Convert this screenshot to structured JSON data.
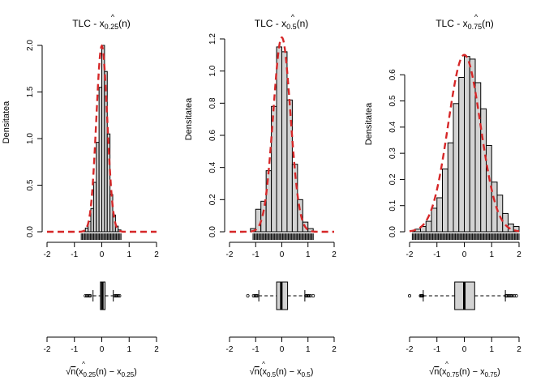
{
  "figure": {
    "panels": [
      {
        "title_main": "TLC - ",
        "title_sym": "x",
        "title_hat": "^",
        "title_sub": "0.25",
        "title_arg": "(n)",
        "ylabel": "Densitatea",
        "xlabel_sqrt": "√",
        "xlabel_n": "n",
        "xlabel_open": "(",
        "xlabel_hat": "^",
        "xlabel_x": "x",
        "xlabel_sub": "0.25",
        "xlabel_mid": "(n) − x",
        "xlabel_sub2": "0.25",
        "xlabel_close": ")"
      },
      {
        "title_main": "TLC - ",
        "title_sym": "x",
        "title_hat": "^",
        "title_sub": "0.5",
        "title_arg": "(n)",
        "ylabel": "Densitatea",
        "xlabel_sqrt": "√",
        "xlabel_n": "n",
        "xlabel_open": "(",
        "xlabel_hat": "^",
        "xlabel_x": "x",
        "xlabel_sub": "0.5",
        "xlabel_mid": "(n) − x",
        "xlabel_sub2": "0.5",
        "xlabel_close": ")"
      },
      {
        "title_main": "TLC - ",
        "title_sym": "x",
        "title_hat": "^",
        "title_sub": "0.75",
        "title_arg": "(n)",
        "ylabel": "Densitatea",
        "xlabel_sqrt": "√",
        "xlabel_n": "n",
        "xlabel_open": "(",
        "xlabel_hat": "^",
        "xlabel_x": "x",
        "xlabel_sub": "0.75",
        "xlabel_mid": "(n) − x",
        "xlabel_sub2": "0.75",
        "xlabel_close": ")"
      }
    ]
  },
  "colors": {
    "bar_fill": "#d3d3d3",
    "bar_stroke": "#000000",
    "density_curve": "#d62728",
    "box_fill": "#d3d3d3"
  },
  "chart_data": [
    {
      "type": "histogram",
      "xlim": [
        -2,
        2
      ],
      "ylim": [
        0,
        2.0
      ],
      "x_ticks": [
        -2,
        -1,
        0,
        1,
        2
      ],
      "y_ticks": [
        0.0,
        0.5,
        1.0,
        1.5,
        2.0
      ],
      "bin_edges": [
        -0.7,
        -0.6,
        -0.5,
        -0.4,
        -0.3,
        -0.2,
        -0.1,
        0.0,
        0.1,
        0.2,
        0.3,
        0.4,
        0.5,
        0.6,
        0.7
      ],
      "densities": [
        0.01,
        0.04,
        0.11,
        0.25,
        0.53,
        0.96,
        1.55,
        2.0,
        1.72,
        1.05,
        0.4,
        0.18,
        0.06,
        0.02
      ],
      "normal_curve": {
        "mean": 0.0,
        "sd": 0.2
      },
      "rug_range": [
        -0.75,
        0.72
      ],
      "boxplot": {
        "q1": -0.05,
        "median": 0.02,
        "q3": 0.12,
        "whisker_low": -0.32,
        "whisker_high": 0.42,
        "outliers": [
          -0.6,
          -0.55,
          -0.5,
          -0.45,
          -0.42,
          0.48,
          0.52,
          0.55,
          0.6,
          0.65
        ]
      },
      "grid": false
    },
    {
      "type": "histogram",
      "xlim": [
        -2,
        2
      ],
      "ylim": [
        0,
        1.2
      ],
      "x_ticks": [
        -2,
        -1,
        0,
        1,
        2
      ],
      "y_ticks": [
        0.0,
        0.2,
        0.4,
        0.6,
        0.8,
        1.0,
        1.2
      ],
      "bin_edges": [
        -1.2,
        -1.0,
        -0.8,
        -0.6,
        -0.4,
        -0.2,
        0.0,
        0.2,
        0.4,
        0.6,
        0.8,
        1.0,
        1.2
      ],
      "densities": [
        0.02,
        0.14,
        0.19,
        0.38,
        0.78,
        1.15,
        1.12,
        0.82,
        0.42,
        0.2,
        0.06,
        0.02
      ],
      "normal_curve": {
        "mean": 0.0,
        "sd": 0.33
      },
      "rug_range": [
        -1.1,
        1.2
      ],
      "boxplot": {
        "q1": -0.2,
        "median": -0.02,
        "q3": 0.22,
        "whisker_low": -0.88,
        "whisker_high": 0.88,
        "outliers": [
          -1.3,
          -1.08,
          -1.02,
          -0.98,
          -0.94,
          0.92,
          0.96,
          1.0,
          1.04,
          1.1,
          1.2
        ]
      },
      "grid": false
    },
    {
      "type": "histogram",
      "xlim": [
        -2,
        2
      ],
      "ylim": [
        0,
        0.7
      ],
      "x_ticks": [
        -2,
        -1,
        0,
        1,
        2
      ],
      "y_ticks": [
        0.0,
        0.1,
        0.2,
        0.3,
        0.4,
        0.5,
        0.6
      ],
      "bin_edges": [
        -1.9,
        -1.8,
        -1.6,
        -1.4,
        -1.2,
        -1.0,
        -0.8,
        -0.6,
        -0.4,
        -0.2,
        0.0,
        0.2,
        0.4,
        0.6,
        0.8,
        1.0,
        1.2,
        1.4,
        1.6,
        1.8,
        2.0
      ],
      "densities": [
        0.002,
        0.01,
        0.02,
        0.04,
        0.09,
        0.13,
        0.24,
        0.34,
        0.49,
        0.59,
        0.67,
        0.66,
        0.57,
        0.47,
        0.33,
        0.19,
        0.14,
        0.07,
        0.03,
        0.02
      ],
      "normal_curve": {
        "mean": 0.0,
        "sd": 0.59
      },
      "rug_range": [
        -1.9,
        2.0
      ],
      "boxplot": {
        "q1": -0.35,
        "median": 0.0,
        "q3": 0.38,
        "whisker_low": -1.5,
        "whisker_high": 1.5,
        "outliers": [
          -2.0,
          -1.6,
          -1.57,
          -1.55,
          -1.52,
          1.52,
          1.55,
          1.6,
          1.65,
          1.7,
          1.75,
          1.82,
          1.9
        ]
      },
      "grid": false
    }
  ]
}
